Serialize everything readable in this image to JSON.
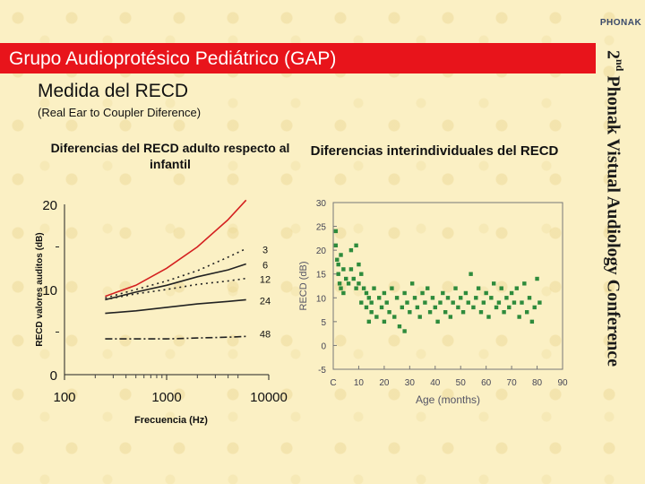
{
  "header": {
    "logo": "PHONAK",
    "title": "Grupo Audioprotésico Pediátrico (GAP)",
    "subtitle": "Medida del RECD",
    "note": "(Real Ear to Coupler Diference)"
  },
  "side_banner": {
    "ordinal": "2",
    "ordinal_suffix": "nd",
    "text": "Phonak Vistual Audiology Conference"
  },
  "colors": {
    "banner": "#e8141b",
    "background": "#fbf0c4",
    "scatter": "#2e8b3c",
    "adult_line": "#d42020"
  },
  "chart_data": [
    {
      "type": "line",
      "title": "Diferencias del RECD adulto respecto al infantil",
      "xlabel": "Frecuencia (Hz)",
      "ylabel": "RECD valores auditos (dB)",
      "xscale": "log",
      "xlim": [
        100,
        10000
      ],
      "ylim": [
        0,
        20
      ],
      "xticks": [
        100,
        1000,
        10000
      ],
      "yticks": [
        0,
        10,
        20
      ],
      "grid": false,
      "series": [
        {
          "name": "",
          "line": "solid-red",
          "x": [
            250,
            500,
            1000,
            2000,
            4000,
            6000
          ],
          "y": [
            9.2,
            10.5,
            12.5,
            15.0,
            18.2,
            20.5
          ]
        },
        {
          "name": "3",
          "line": "dotted",
          "x": [
            250,
            500,
            1000,
            2000,
            4000,
            6000
          ],
          "y": [
            9.0,
            10.0,
            11.0,
            12.2,
            13.8,
            14.8
          ]
        },
        {
          "name": "6",
          "line": "solid",
          "x": [
            250,
            500,
            1000,
            2000,
            4000,
            6000
          ],
          "y": [
            8.8,
            9.7,
            10.5,
            11.5,
            12.3,
            13.0
          ]
        },
        {
          "name": "12",
          "line": "dotted",
          "x": [
            250,
            500,
            1000,
            2000,
            4000,
            6000
          ],
          "y": [
            8.8,
            9.5,
            10.0,
            10.6,
            11.0,
            11.3
          ]
        },
        {
          "name": "24",
          "line": "solid",
          "x": [
            250,
            500,
            1000,
            2000,
            4000,
            6000
          ],
          "y": [
            7.2,
            7.5,
            7.9,
            8.3,
            8.6,
            8.8
          ]
        },
        {
          "name": "48",
          "line": "dashdot",
          "x": [
            250,
            500,
            1000,
            2000,
            4000,
            6000
          ],
          "y": [
            4.2,
            4.2,
            4.2,
            4.3,
            4.4,
            4.5
          ]
        }
      ]
    },
    {
      "type": "scatter",
      "title": "Diferencias interindividuales del RECD",
      "xlabel": "Age (months)",
      "ylabel": "RECD (dB)",
      "xlim": [
        0,
        90
      ],
      "ylim": [
        -5,
        30
      ],
      "xticks": [
        0,
        10,
        20,
        30,
        40,
        50,
        60,
        70,
        80,
        90
      ],
      "xtick_labels": [
        "C",
        "10",
        "20",
        "30",
        "40",
        "50",
        "60",
        "70",
        "80",
        "90"
      ],
      "yticks": [
        -5,
        0,
        5,
        10,
        15,
        20,
        25,
        30
      ],
      "points": [
        [
          1,
          24
        ],
        [
          1,
          21
        ],
        [
          1.5,
          18
        ],
        [
          2,
          17
        ],
        [
          2,
          15
        ],
        [
          2.5,
          13
        ],
        [
          3,
          12
        ],
        [
          3,
          19
        ],
        [
          4,
          16
        ],
        [
          4,
          11
        ],
        [
          5,
          14
        ],
        [
          6,
          13
        ],
        [
          7,
          20
        ],
        [
          7,
          16
        ],
        [
          8,
          14
        ],
        [
          9,
          21
        ],
        [
          9,
          12
        ],
        [
          10,
          17
        ],
        [
          10,
          13
        ],
        [
          11,
          9
        ],
        [
          11,
          15
        ],
        [
          12,
          12
        ],
        [
          13,
          11
        ],
        [
          13,
          8
        ],
        [
          14,
          10
        ],
        [
          14,
          5
        ],
        [
          15,
          7
        ],
        [
          15,
          9
        ],
        [
          16,
          12
        ],
        [
          17,
          6
        ],
        [
          18,
          10
        ],
        [
          19,
          8
        ],
        [
          20,
          11
        ],
        [
          20,
          5
        ],
        [
          21,
          9
        ],
        [
          22,
          7
        ],
        [
          23,
          12
        ],
        [
          24,
          6
        ],
        [
          25,
          10
        ],
        [
          26,
          4
        ],
        [
          27,
          8
        ],
        [
          28,
          3
        ],
        [
          28,
          11
        ],
        [
          29,
          9
        ],
        [
          30,
          7
        ],
        [
          31,
          13
        ],
        [
          32,
          10
        ],
        [
          33,
          8
        ],
        [
          34,
          6
        ],
        [
          35,
          11
        ],
        [
          36,
          9
        ],
        [
          37,
          12
        ],
        [
          38,
          7
        ],
        [
          39,
          10
        ],
        [
          40,
          8
        ],
        [
          41,
          5
        ],
        [
          42,
          9
        ],
        [
          43,
          11
        ],
        [
          44,
          7
        ],
        [
          45,
          10
        ],
        [
          46,
          6
        ],
        [
          47,
          9
        ],
        [
          48,
          12
        ],
        [
          49,
          8
        ],
        [
          50,
          10
        ],
        [
          51,
          7
        ],
        [
          52,
          11
        ],
        [
          53,
          9
        ],
        [
          54,
          15
        ],
        [
          55,
          8
        ],
        [
          56,
          10
        ],
        [
          57,
          12
        ],
        [
          58,
          7
        ],
        [
          59,
          9
        ],
        [
          60,
          11
        ],
        [
          61,
          6
        ],
        [
          62,
          10
        ],
        [
          63,
          13
        ],
        [
          64,
          8
        ],
        [
          65,
          9
        ],
        [
          66,
          12
        ],
        [
          67,
          7
        ],
        [
          68,
          10
        ],
        [
          69,
          8
        ],
        [
          70,
          11
        ],
        [
          71,
          9
        ],
        [
          72,
          12
        ],
        [
          73,
          6
        ],
        [
          74,
          9
        ],
        [
          75,
          13
        ],
        [
          76,
          7
        ],
        [
          77,
          10
        ],
        [
          78,
          5
        ],
        [
          79,
          8
        ],
        [
          80,
          14
        ],
        [
          81,
          9
        ]
      ]
    }
  ]
}
